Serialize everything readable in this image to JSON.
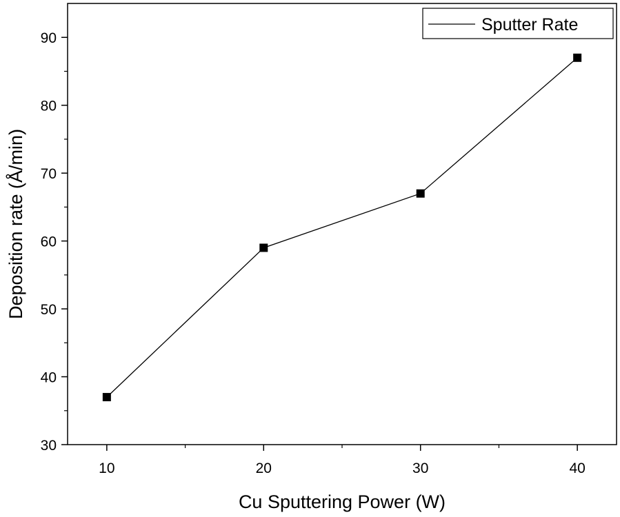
{
  "chart_data": {
    "type": "line",
    "title": "",
    "xlabel": "Cu Sputtering Power (W)",
    "ylabel": "Deposition rate (Å/min)",
    "xlim": [
      7.5,
      42.5
    ],
    "ylim": [
      30,
      95
    ],
    "x_ticks": [
      10,
      20,
      30,
      40
    ],
    "x_minor_ticks": [
      15,
      25,
      35
    ],
    "y_ticks": [
      30,
      40,
      50,
      60,
      70,
      80,
      90
    ],
    "y_minor_ticks": [
      35,
      45,
      55,
      65,
      75,
      85
    ],
    "grid": false,
    "legend_position": "top-right",
    "marker": "square",
    "color": "#000000",
    "series": [
      {
        "name": "Sputter Rate",
        "x": [
          10,
          20,
          30,
          40
        ],
        "y": [
          37,
          59,
          67,
          87
        ]
      }
    ]
  }
}
